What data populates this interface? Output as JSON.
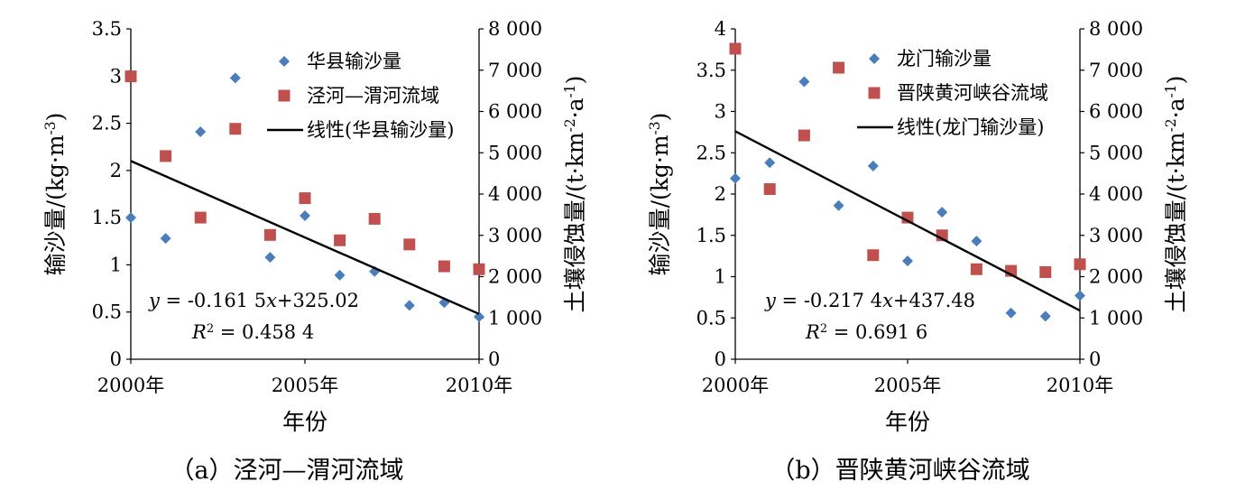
{
  "chart_data": [
    {
      "type": "scatter",
      "caption": "（a）泾河—渭河流域",
      "xlabel": "年份",
      "ylabel_left": "输沙量/(kg·m⁻³)",
      "ylabel_right": "土壤侵蚀量/(t·km⁻²·a⁻¹)",
      "xlim": [
        2000,
        2010
      ],
      "ylim_left": [
        0,
        3.5
      ],
      "ylim_right": [
        0,
        8000
      ],
      "x_ticks": [
        {
          "value": 2000,
          "label": "2000年"
        },
        {
          "value": 2005,
          "label": "2005年"
        },
        {
          "value": 2010,
          "label": "2010年"
        }
      ],
      "y_left_ticks": [
        "0",
        "0.5",
        "1",
        "1.5",
        "2",
        "2.5",
        "3",
        "3.5"
      ],
      "y_right_ticks": [
        "0",
        "1 000",
        "2 000",
        "3 000",
        "4 000",
        "5 000",
        "6 000",
        "7 000",
        "8 000"
      ],
      "series": [
        {
          "name": "华县输沙量",
          "axis": "left",
          "marker": "diamond",
          "color": "#4a7ebb",
          "x": [
            2000,
            2001,
            2002,
            2003,
            2004,
            2005,
            2006,
            2007,
            2008,
            2009,
            2010
          ],
          "values": [
            1.5,
            1.28,
            2.41,
            2.98,
            1.08,
            1.52,
            0.89,
            0.93,
            0.57,
            0.6,
            0.45
          ]
        },
        {
          "name": "泾河—渭河流域",
          "axis": "right",
          "marker": "square",
          "color": "#c0504d",
          "x": [
            2000,
            2001,
            2002,
            2003,
            2004,
            2005,
            2006,
            2007,
            2008,
            2009,
            2010
          ],
          "values": [
            6850,
            4920,
            3430,
            5580,
            3010,
            3900,
            2880,
            3400,
            2780,
            2250,
            2180
          ]
        },
        {
          "name": "线性(华县输沙量)",
          "axis": "left",
          "type": "line",
          "color": "#000000",
          "x": [
            2000,
            2010
          ],
          "values": [
            2.1,
            0.48
          ]
        }
      ],
      "equation": "y = -0.161 5x+325.02",
      "r2": "R² = 0.458 4",
      "legend_position": "top-right"
    },
    {
      "type": "scatter",
      "caption": "（b）晋陕黄河峡谷流域",
      "xlabel": "年份",
      "ylabel_left": "输沙量/(kg·m⁻³)",
      "ylabel_right": "土壤侵蚀量/(t·km⁻²·a⁻¹)",
      "xlim": [
        2000,
        2010
      ],
      "ylim_left": [
        0,
        4
      ],
      "ylim_right": [
        0,
        8000
      ],
      "x_ticks": [
        {
          "value": 2000,
          "label": "2000年"
        },
        {
          "value": 2005,
          "label": "2005年"
        },
        {
          "value": 2010,
          "label": "2010年"
        }
      ],
      "y_left_ticks": [
        "0",
        "0.5",
        "1",
        "1.5",
        "2",
        "2.5",
        "3",
        "3.5",
        "4"
      ],
      "y_right_ticks": [
        "0",
        "1 000",
        "2 000",
        "3 000",
        "4 000",
        "5 000",
        "6 000",
        "7 000",
        "8 000"
      ],
      "series": [
        {
          "name": "龙门输沙量",
          "axis": "left",
          "marker": "diamond",
          "color": "#4a7ebb",
          "x": [
            2000,
            2001,
            2002,
            2003,
            2004,
            2005,
            2006,
            2007,
            2008,
            2009,
            2010
          ],
          "values": [
            2.19,
            2.38,
            3.36,
            1.86,
            2.34,
            1.19,
            1.78,
            1.43,
            0.56,
            0.52,
            0.77
          ]
        },
        {
          "name": "晋陕黄河峡谷流域",
          "axis": "right",
          "marker": "square",
          "color": "#c0504d",
          "x": [
            2000,
            2001,
            2002,
            2003,
            2004,
            2005,
            2006,
            2007,
            2008,
            2009,
            2010
          ],
          "values": [
            7520,
            4120,
            5420,
            7060,
            2520,
            3430,
            3000,
            2180,
            2140,
            2110,
            2300
          ]
        },
        {
          "name": "线性(龙门输沙量)",
          "axis": "left",
          "type": "line",
          "color": "#000000",
          "x": [
            2000,
            2010
          ],
          "values": [
            2.76,
            0.59
          ]
        }
      ],
      "equation": "y = -0.217 4x+437.48",
      "r2": "R² = 0.691 6",
      "legend_position": "top-right"
    }
  ]
}
